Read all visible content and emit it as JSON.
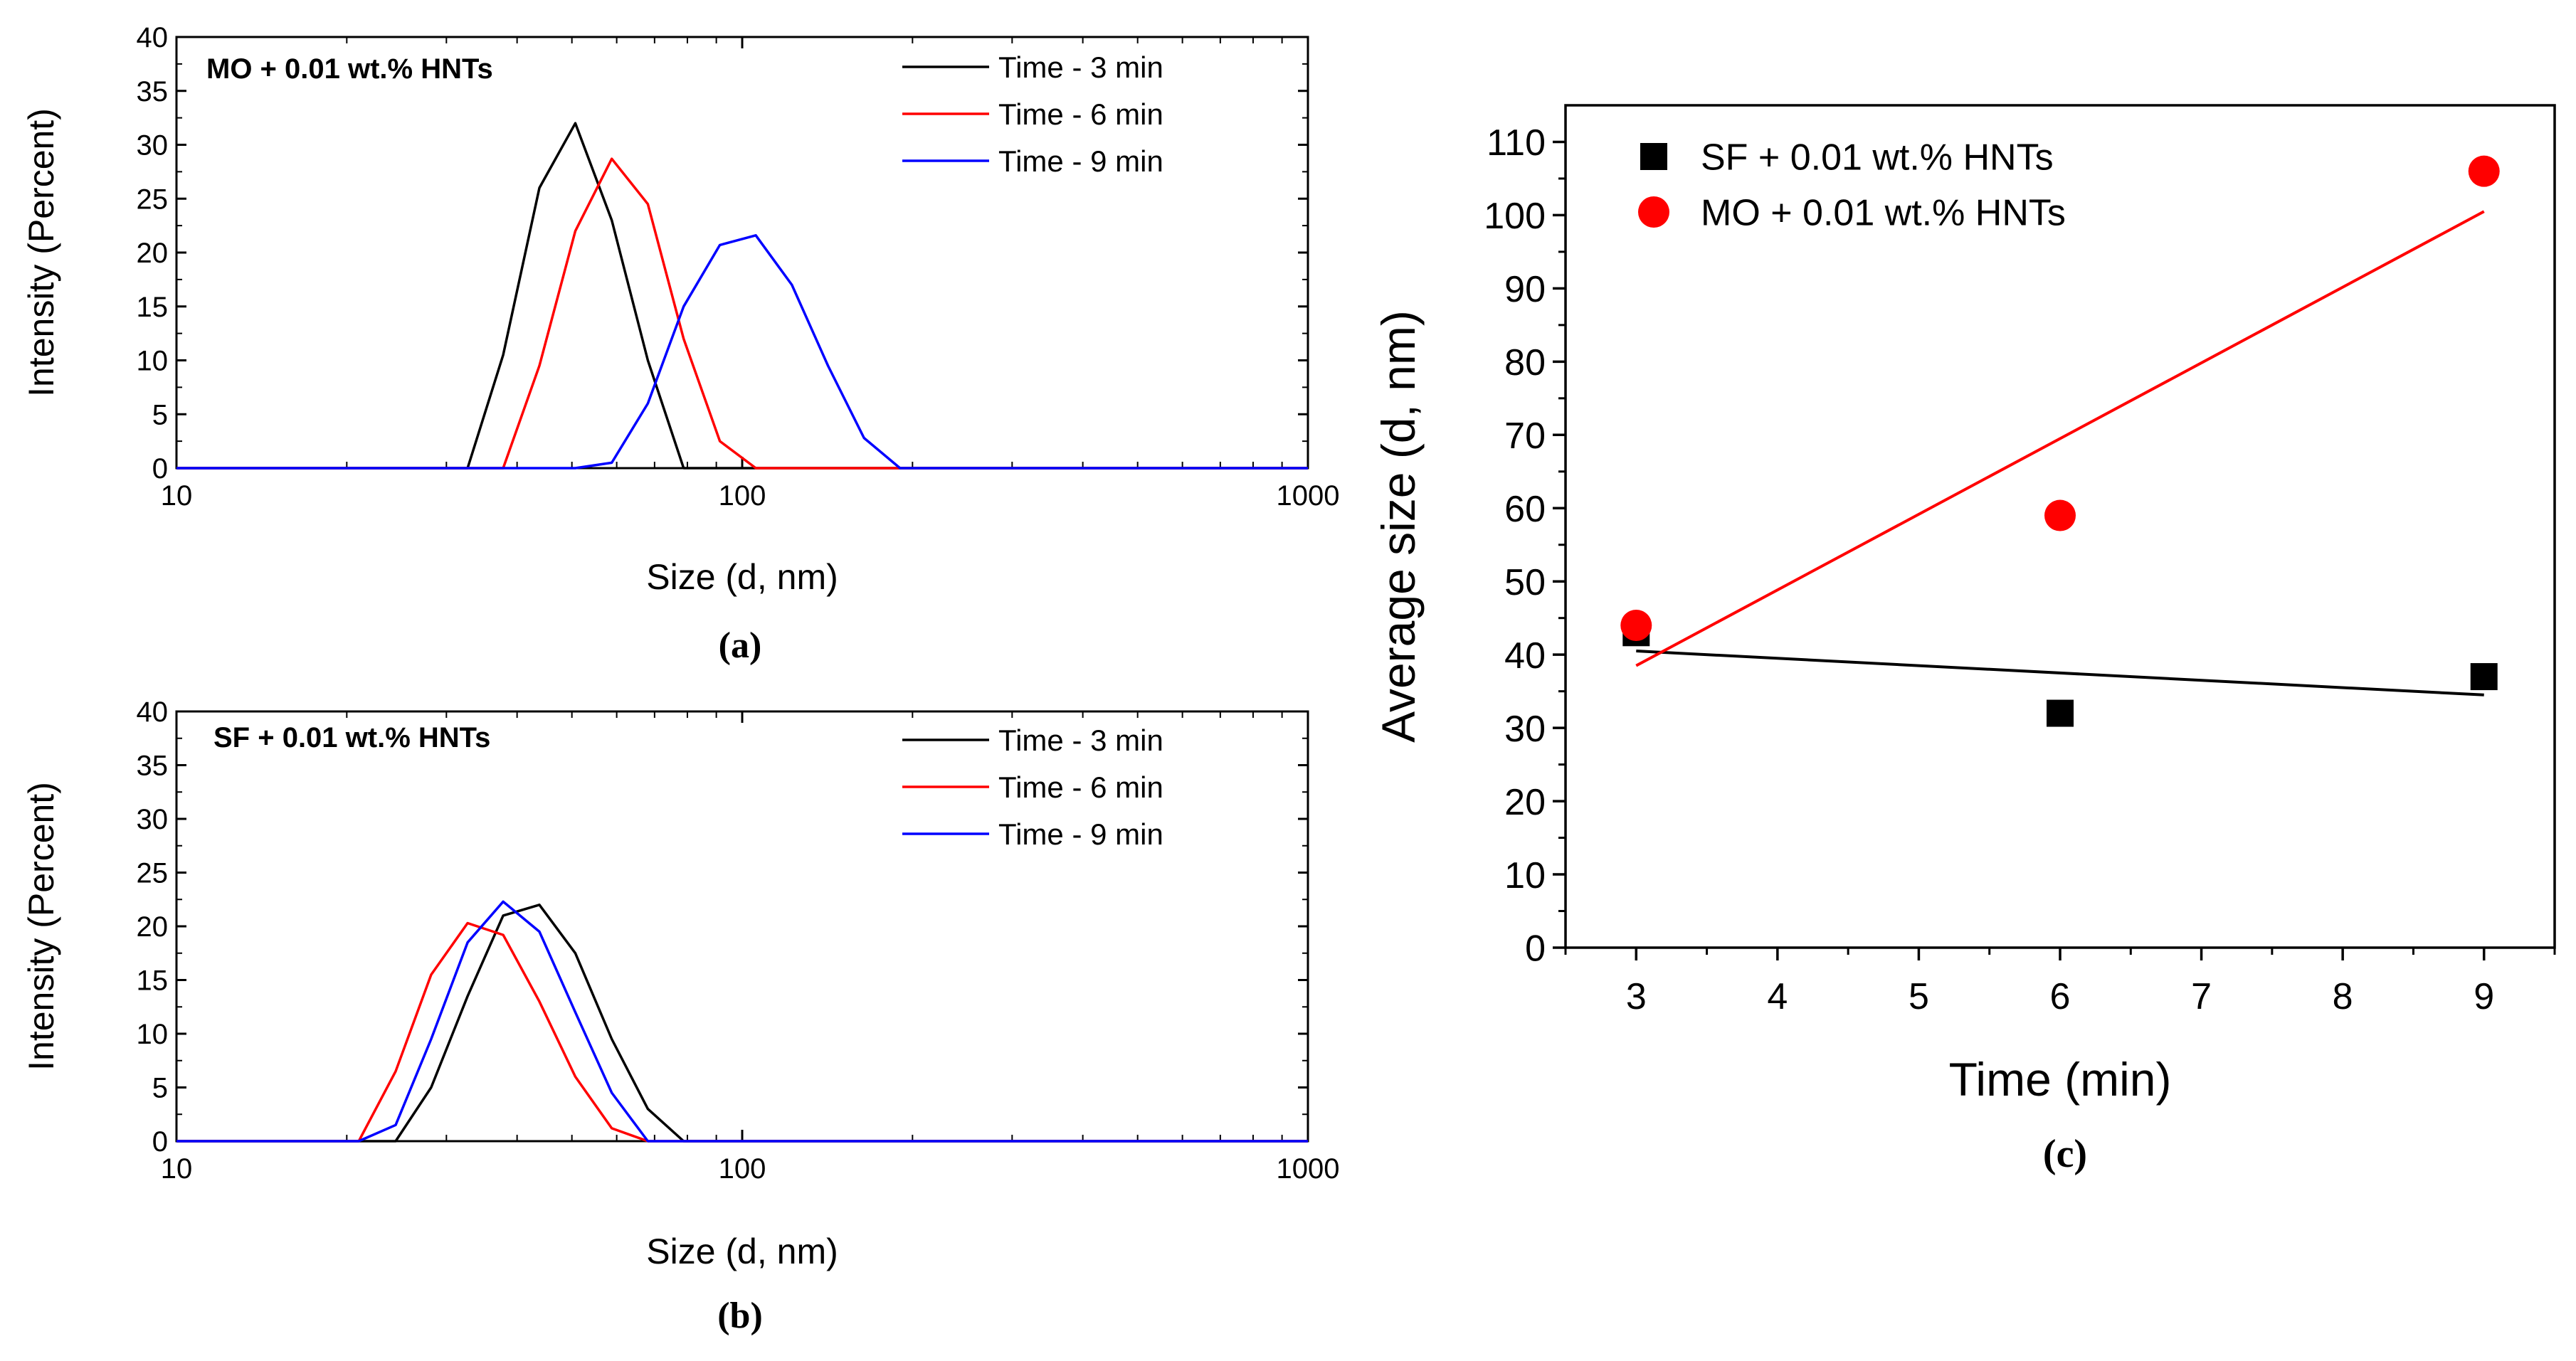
{
  "chart_data": [
    {
      "id": "a",
      "type": "line",
      "xscale": "log",
      "xlim": [
        10,
        1000
      ],
      "ylim": [
        0,
        40
      ],
      "xticks": [
        10,
        100,
        1000
      ],
      "xtick_labels": [
        "10",
        "100",
        "1000"
      ],
      "yticks": [
        0,
        5,
        10,
        15,
        20,
        25,
        30,
        35,
        40
      ],
      "xlabel": "Size (d, nm)",
      "ylabel": "Intensity (Percent)",
      "sample_label": "MO + 0.01 wt.% HNTs",
      "panel_label": "(a)",
      "legend_position": "top-right",
      "series": [
        {
          "name": "Time - 3 min",
          "color": "#000000",
          "x": [
            10,
            32.7,
            37.8,
            43.8,
            50.7,
            58.8,
            68.1,
            78.8,
            1000
          ],
          "y": [
            0,
            0,
            10.5,
            26,
            32,
            23,
            10,
            0,
            0
          ]
        },
        {
          "name": "Time - 6 min",
          "color": "#ff0000",
          "x": [
            10,
            37.8,
            43.8,
            50.7,
            58.8,
            68.1,
            78.8,
            91.3,
            105.7,
            1000
          ],
          "y": [
            0,
            0,
            9.5,
            22,
            28.7,
            24.5,
            12,
            2.5,
            0,
            0
          ]
        },
        {
          "name": "Time - 9 min",
          "color": "#0000ff",
          "x": [
            10,
            50.7,
            58.8,
            68.1,
            78.8,
            91.3,
            105.7,
            122.4,
            141.8,
            164.2,
            190.1,
            1000
          ],
          "y": [
            0,
            0,
            0.5,
            6,
            15,
            20.7,
            21.6,
            17,
            9.5,
            2.8,
            0,
            0
          ]
        }
      ]
    },
    {
      "id": "b",
      "type": "line",
      "xscale": "log",
      "xlim": [
        10,
        1000
      ],
      "ylim": [
        0,
        40
      ],
      "xticks": [
        10,
        100,
        1000
      ],
      "xtick_labels": [
        "10",
        "100",
        "1000"
      ],
      "yticks": [
        0,
        5,
        10,
        15,
        20,
        25,
        30,
        35,
        40
      ],
      "xlabel": "Size (d, nm)",
      "ylabel": "Intensity (Percent)",
      "sample_label": "SF + 0.01 wt.% HNTs",
      "panel_label": "(b)",
      "legend_position": "top-right",
      "series": [
        {
          "name": "Time - 3 min",
          "color": "#000000",
          "x": [
            10,
            24.4,
            28.2,
            32.7,
            37.8,
            43.8,
            50.7,
            58.8,
            68.1,
            78.8,
            1000
          ],
          "y": [
            0,
            0,
            5,
            13.5,
            21,
            22,
            17.5,
            9.5,
            3,
            0,
            0
          ]
        },
        {
          "name": "Time - 6 min",
          "color": "#ff0000",
          "x": [
            10,
            21.0,
            24.4,
            28.2,
            32.7,
            37.8,
            43.8,
            50.7,
            58.8,
            68.1,
            1000
          ],
          "y": [
            0,
            0,
            6.5,
            15.5,
            20.3,
            19.2,
            13,
            6,
            1.2,
            0,
            0
          ]
        },
        {
          "name": "Time - 9 min",
          "color": "#0000ff",
          "x": [
            10,
            21.0,
            24.4,
            28.2,
            32.7,
            37.8,
            43.8,
            50.7,
            58.8,
            68.1,
            1000
          ],
          "y": [
            0,
            0,
            1.5,
            9.5,
            18.5,
            22.3,
            19.5,
            12,
            4.5,
            0,
            0
          ]
        }
      ]
    },
    {
      "id": "c",
      "type": "scatter",
      "xlim": [
        2.5,
        9.5
      ],
      "ylim": [
        0,
        115
      ],
      "xticks": [
        3,
        4,
        5,
        6,
        7,
        8,
        9
      ],
      "yticks": [
        0,
        10,
        20,
        30,
        40,
        50,
        60,
        70,
        80,
        90,
        100,
        110
      ],
      "xlabel": "Time (min)",
      "ylabel": "Average size (d, nm)",
      "panel_label": "(c)",
      "legend_position": "top-left",
      "series": [
        {
          "name": "SF + 0.01 wt.% HNTs",
          "color": "#000000",
          "marker": "square",
          "x": [
            3,
            6,
            9
          ],
          "y": [
            43,
            32,
            37
          ],
          "fit": {
            "x": [
              3,
              9
            ],
            "y": [
              40.5,
              34.5
            ]
          }
        },
        {
          "name": "MO + 0.01 wt.% HNTs",
          "color": "#ff0000",
          "marker": "circle",
          "x": [
            3,
            6,
            9
          ],
          "y": [
            44,
            59,
            106
          ],
          "fit": {
            "x": [
              3,
              9
            ],
            "y": [
              38.5,
              100.5
            ]
          }
        }
      ]
    }
  ]
}
